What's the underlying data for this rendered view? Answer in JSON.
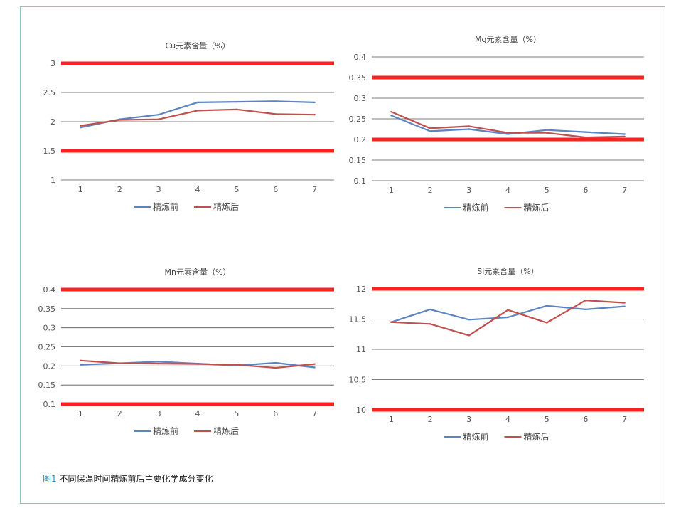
{
  "caption": {
    "figure_label": "图1",
    "text": " 不同保温时间精炼前后主要化学成分变化"
  },
  "colors": {
    "before": "#5b84c0",
    "after": "#c0504d",
    "limit": "#ff2020",
    "grid": "#505050",
    "text": "#555555"
  },
  "chart_data": [
    {
      "type": "line",
      "title": "Cu元素含量（%）",
      "categories": [
        "1",
        "2",
        "3",
        "4",
        "5",
        "6",
        "7"
      ],
      "yticks": [
        "1",
        "1.5",
        "2",
        "2.5",
        "3"
      ],
      "ylim": [
        1,
        3
      ],
      "limit_lines": [
        1.5,
        3
      ],
      "series": [
        {
          "name": "精炼前",
          "values": [
            1.9,
            2.04,
            2.12,
            2.33,
            2.34,
            2.35,
            2.33
          ]
        },
        {
          "name": "精炼后",
          "values": [
            1.93,
            2.03,
            2.04,
            2.19,
            2.21,
            2.13,
            2.12
          ]
        }
      ],
      "legend": "bottom"
    },
    {
      "type": "line",
      "title": "Mg元素含量（%）",
      "categories": [
        "1",
        "2",
        "3",
        "4",
        "5",
        "6",
        "7"
      ],
      "yticks": [
        "0.1",
        "0.15",
        "0.2",
        "0.25",
        "0.3",
        "0.35",
        "0.4"
      ],
      "ylim": [
        0.1,
        0.4
      ],
      "limit_lines": [
        0.2,
        0.35
      ],
      "series": [
        {
          "name": "精炼前",
          "values": [
            0.258,
            0.22,
            0.225,
            0.213,
            0.223,
            0.218,
            0.213
          ]
        },
        {
          "name": "精炼后",
          "values": [
            0.267,
            0.227,
            0.232,
            0.216,
            0.216,
            0.205,
            0.207
          ]
        }
      ],
      "legend": "bottom"
    },
    {
      "type": "line",
      "title": "Mn元素含量（%）",
      "categories": [
        "1",
        "2",
        "3",
        "4",
        "5",
        "6",
        "7"
      ],
      "yticks": [
        "0.1",
        "0.15",
        "0.2",
        "0.25",
        "0.3",
        "0.35",
        "0.4"
      ],
      "ylim": [
        0.1,
        0.4
      ],
      "limit_lines": [
        0.1,
        0.4
      ],
      "series": [
        {
          "name": "精炼前",
          "values": [
            0.203,
            0.207,
            0.211,
            0.206,
            0.201,
            0.208,
            0.196
          ]
        },
        {
          "name": "精炼后",
          "values": [
            0.214,
            0.207,
            0.206,
            0.205,
            0.203,
            0.195,
            0.205
          ]
        }
      ],
      "legend": "bottom"
    },
    {
      "type": "line",
      "title": "Si元素含量（%）",
      "categories": [
        "1",
        "2",
        "3",
        "4",
        "5",
        "6",
        "7"
      ],
      "yticks": [
        "10",
        "10.5",
        "11",
        "11.5",
        "12"
      ],
      "ylim": [
        10,
        12
      ],
      "limit_lines": [
        10,
        12
      ],
      "series": [
        {
          "name": "精炼前",
          "values": [
            11.45,
            11.66,
            11.49,
            11.53,
            11.72,
            11.66,
            11.71
          ]
        },
        {
          "name": "精炼后",
          "values": [
            11.45,
            11.42,
            11.23,
            11.65,
            11.44,
            11.81,
            11.77
          ]
        }
      ],
      "legend": "bottom"
    }
  ]
}
